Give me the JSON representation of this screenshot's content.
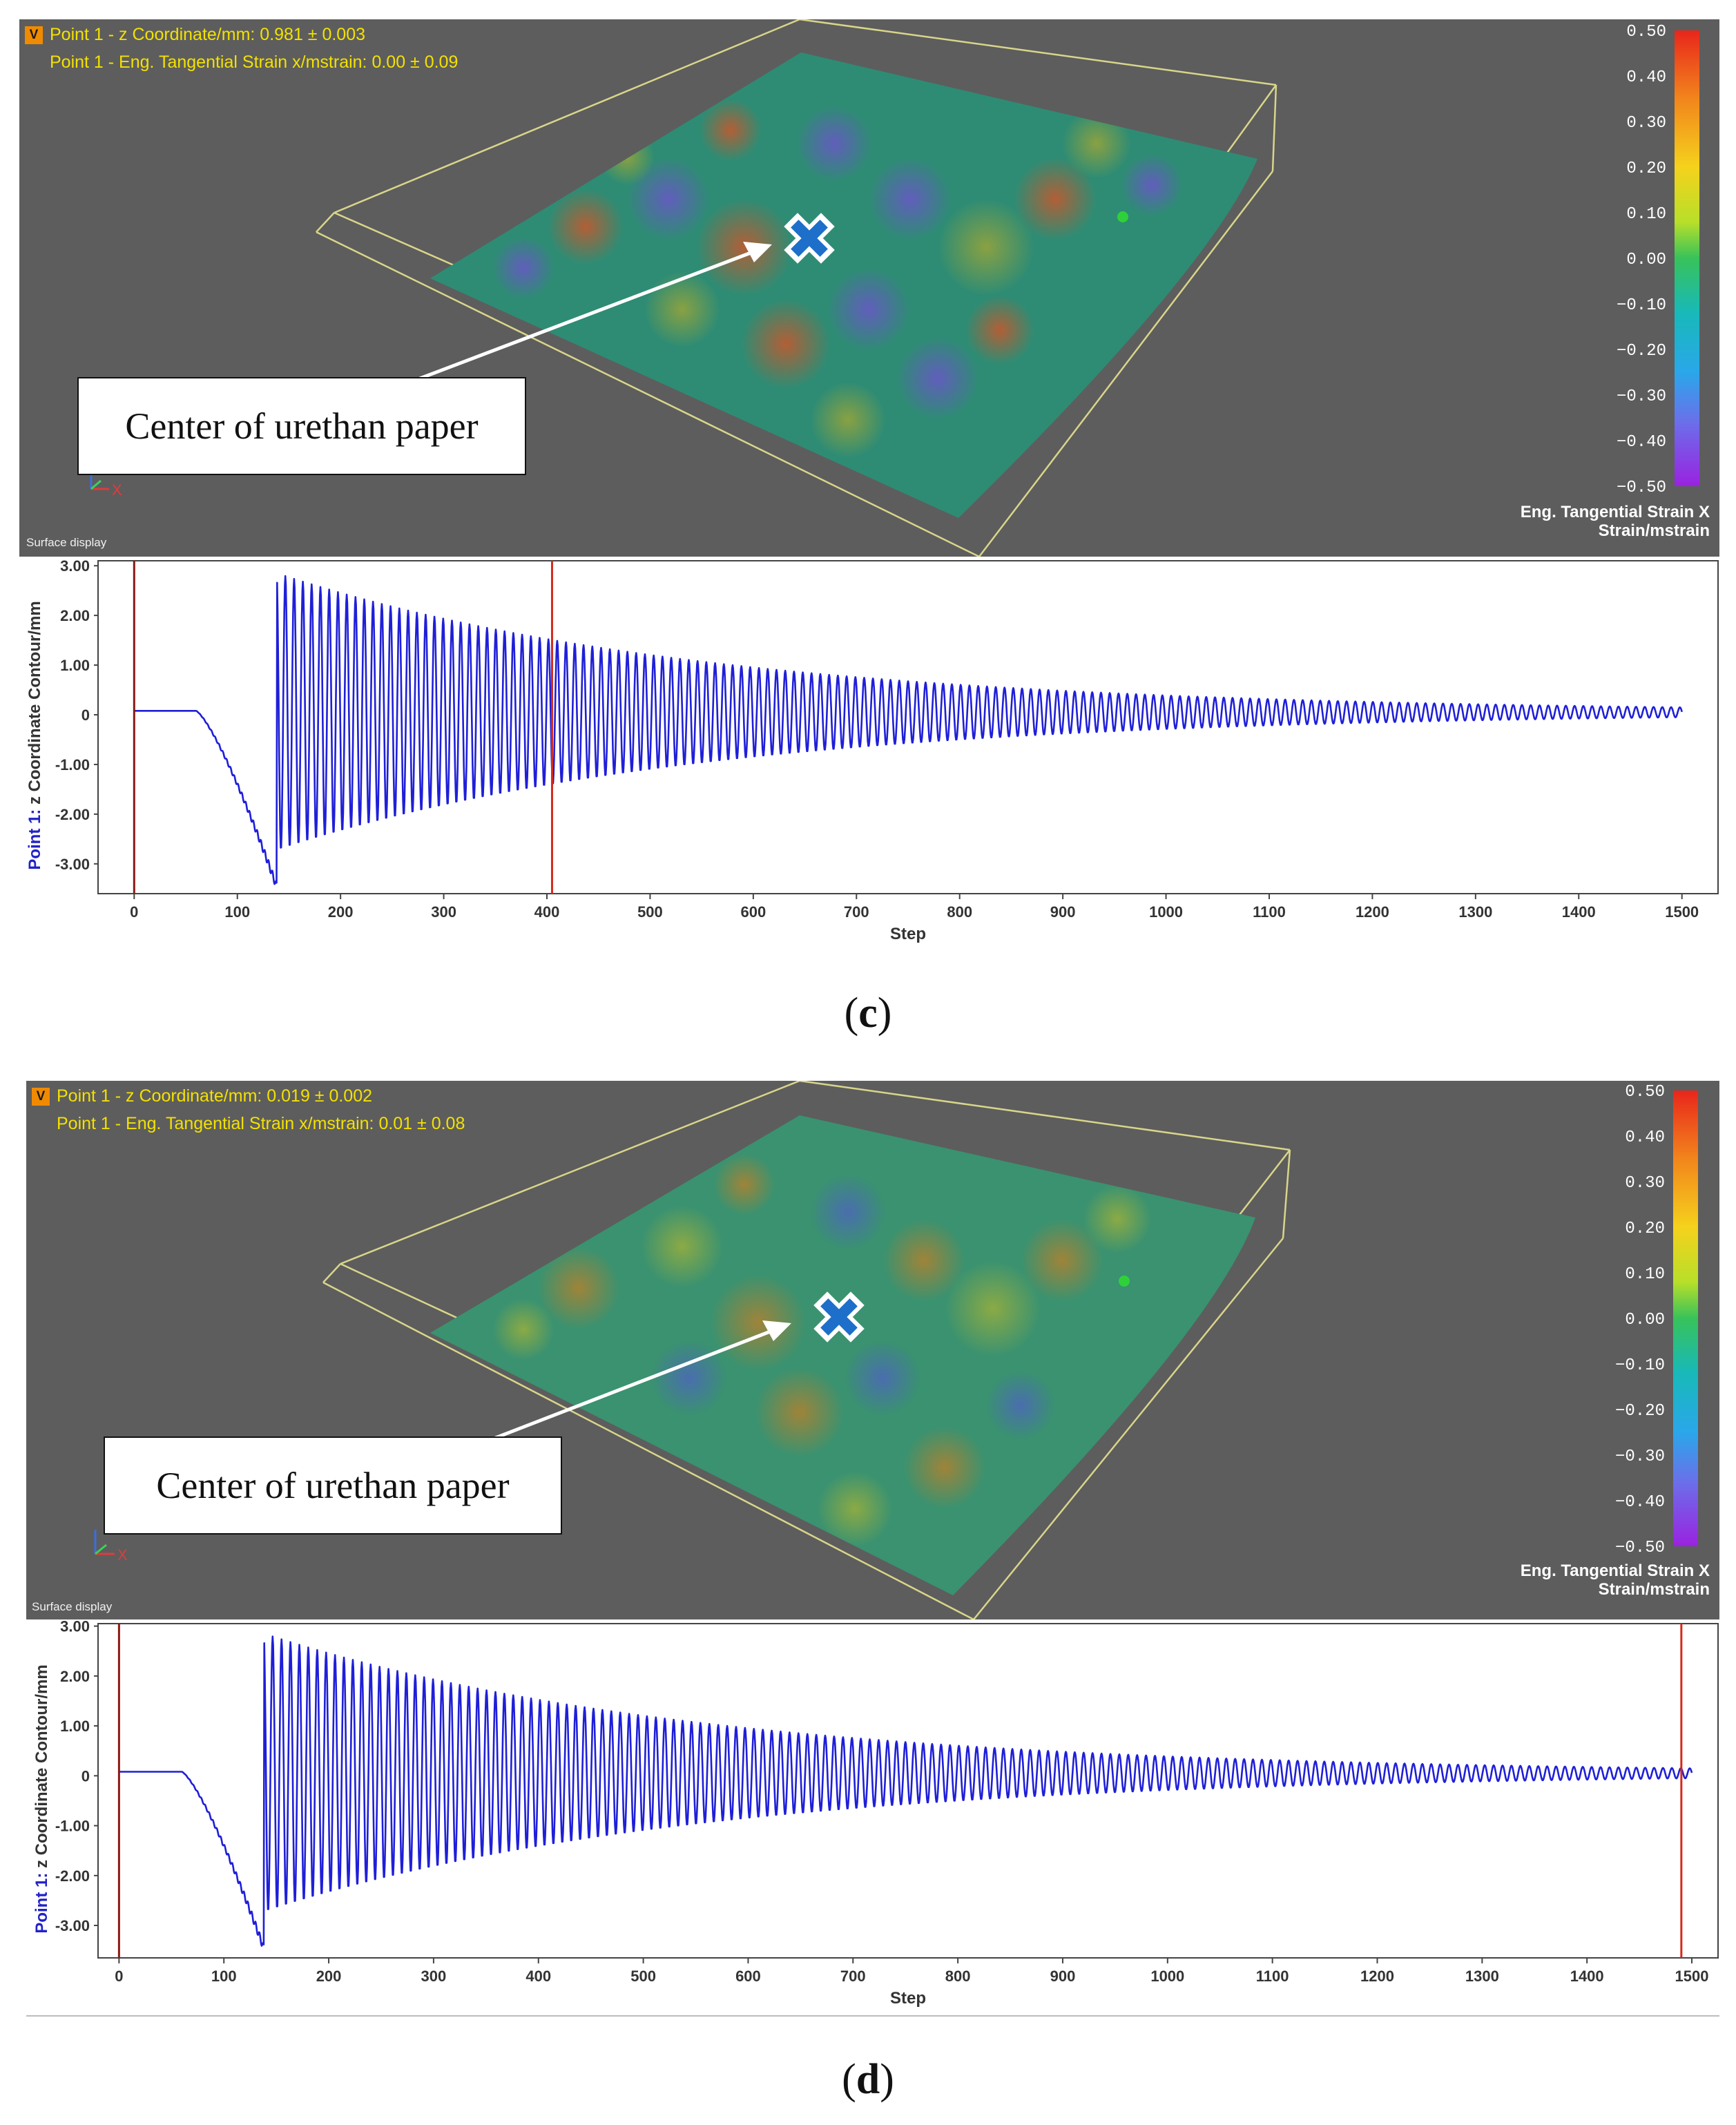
{
  "panels": [
    {
      "id": "c",
      "caption_open": "(",
      "caption_letter": "c",
      "caption_close": ")",
      "badge": "V",
      "readout_line1": "Point 1 - z Coordinate/mm: 0.981 ± 0.003",
      "readout_line2": "Point 1 - Eng. Tangential Strain x/mstrain: 0.00 ± 0.09",
      "surface_label": "Surface display",
      "callout": "Center of urethan paper",
      "axes_labels": {
        "y": "Y",
        "x": "X"
      },
      "legend": {
        "title_line1": "Eng. Tangential Strain X",
        "title_line2": "Strain/mstrain",
        "ticks": [
          "0.50",
          "0.40",
          "0.30",
          "0.20",
          "0.10",
          "0.00",
          "−0.10",
          "−0.20",
          "−0.30",
          "−0.40",
          "−0.50"
        ]
      },
      "marker_step": 405
    },
    {
      "id": "d",
      "caption_open": "(",
      "caption_letter": "d",
      "caption_close": ")",
      "badge": "V",
      "readout_line1": "Point 1 - z Coordinate/mm: 0.019 ± 0.002",
      "readout_line2": "Point 1 - Eng. Tangential Strain x/mstrain: 0.01 ± 0.08",
      "surface_label": "Surface display",
      "callout": "Center of urethan paper",
      "axes_labels": {
        "y": "Y",
        "x": "X"
      },
      "legend": {
        "title_line1": "Eng. Tangential Strain X",
        "title_line2": "Strain/mstrain",
        "ticks": [
          "0.50",
          "0.40",
          "0.30",
          "0.20",
          "0.10",
          "0.00",
          "−0.10",
          "−0.20",
          "−0.30",
          "−0.40",
          "−0.50"
        ]
      },
      "marker_step": 1490
    }
  ],
  "colors": {
    "viewport_bg": "#5d5d5d",
    "readout": "#f3e100",
    "trace": "#1f1fd8",
    "marker": "#d42a1a",
    "start_marker": "#8a1a12",
    "box_edge": "#d9d58a",
    "cross_fill": "#1d6fc9"
  },
  "chart_data": [
    {
      "type": "line",
      "panel": "c",
      "title": "",
      "xlabel": "Step",
      "ylabel": "Point 1:  z Coordinate  Contour/mm",
      "ylabel_prefix": "Point 1:",
      "ylabel_rest": "z Coordinate  Contour/mm",
      "xlim": [
        -35,
        1535
      ],
      "ylim": [
        -3.6,
        3.1
      ],
      "x_ticks": [
        0,
        100,
        200,
        300,
        400,
        500,
        600,
        700,
        800,
        900,
        1000,
        1100,
        1200,
        1300,
        1400,
        1500
      ],
      "x_tick_labels": [
        "0",
        "100",
        "200",
        "300",
        "400",
        "500",
        "600",
        "700",
        "800",
        "900",
        "1000",
        "1100",
        "1200",
        "1300",
        "1400",
        "1500"
      ],
      "y_ticks": [
        3,
        2,
        1,
        0,
        -1,
        -2,
        -3
      ],
      "y_tick_labels": [
        "3.00",
        "2.00",
        "1.00",
        "0",
        "-1.00",
        "-2.00",
        "-3.00"
      ],
      "vertical_markers": [
        0,
        405
      ],
      "series": [
        {
          "name": "z Coordinate",
          "baseline": 0.08,
          "flat_until": 60,
          "dip": {
            "start": 60,
            "end": 138,
            "min": -3.45
          },
          "oscillation": {
            "start": 138,
            "end": 1500,
            "initial_amplitude": 2.8,
            "period": 8.5,
            "amplitude_at_1500": 0.1
          }
        }
      ]
    },
    {
      "type": "line",
      "panel": "d",
      "title": "",
      "xlabel": "Step",
      "ylabel": "Point 1:  z Coordinate  Contour/mm",
      "ylabel_prefix": "Point 1:",
      "ylabel_rest": "z Coordinate  Contour/mm",
      "xlim": [
        -20,
        1525
      ],
      "ylim": [
        -3.65,
        3.05
      ],
      "x_ticks": [
        0,
        100,
        200,
        300,
        400,
        500,
        600,
        700,
        800,
        900,
        1000,
        1100,
        1200,
        1300,
        1400,
        1500
      ],
      "x_tick_labels": [
        "0",
        "100",
        "200",
        "300",
        "400",
        "500",
        "600",
        "700",
        "800",
        "900",
        "1000",
        "1100",
        "1200",
        "1300",
        "1400",
        "1500"
      ],
      "y_ticks": [
        3,
        2,
        1,
        0,
        -1,
        -2,
        -3
      ],
      "y_tick_labels": [
        "3.00",
        "2.00",
        "1.00",
        "0",
        "-1.00",
        "-2.00",
        "-3.00"
      ],
      "vertical_markers": [
        0,
        1490
      ],
      "series": [
        {
          "name": "z Coordinate",
          "baseline": 0.08,
          "flat_until": 60,
          "dip": {
            "start": 60,
            "end": 138,
            "min": -3.45
          },
          "oscillation": {
            "start": 138,
            "end": 1500,
            "initial_amplitude": 2.8,
            "period": 8.5,
            "amplitude_at_1500": 0.1
          }
        }
      ]
    }
  ]
}
